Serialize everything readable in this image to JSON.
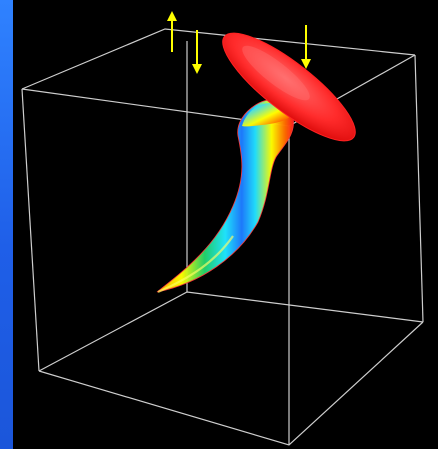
{
  "image": {
    "type": "3D-rendered-visualization",
    "elements": [
      "wireframe-box",
      "red-disk",
      "rainbow-vortex-tube",
      "yellow-arrows"
    ],
    "colors": {
      "background": "#000000",
      "left_band": "#2a78ff",
      "box_lines": "#d9d9d9",
      "disk": "#ff2b2b",
      "arrows": "#ffff00"
    }
  }
}
